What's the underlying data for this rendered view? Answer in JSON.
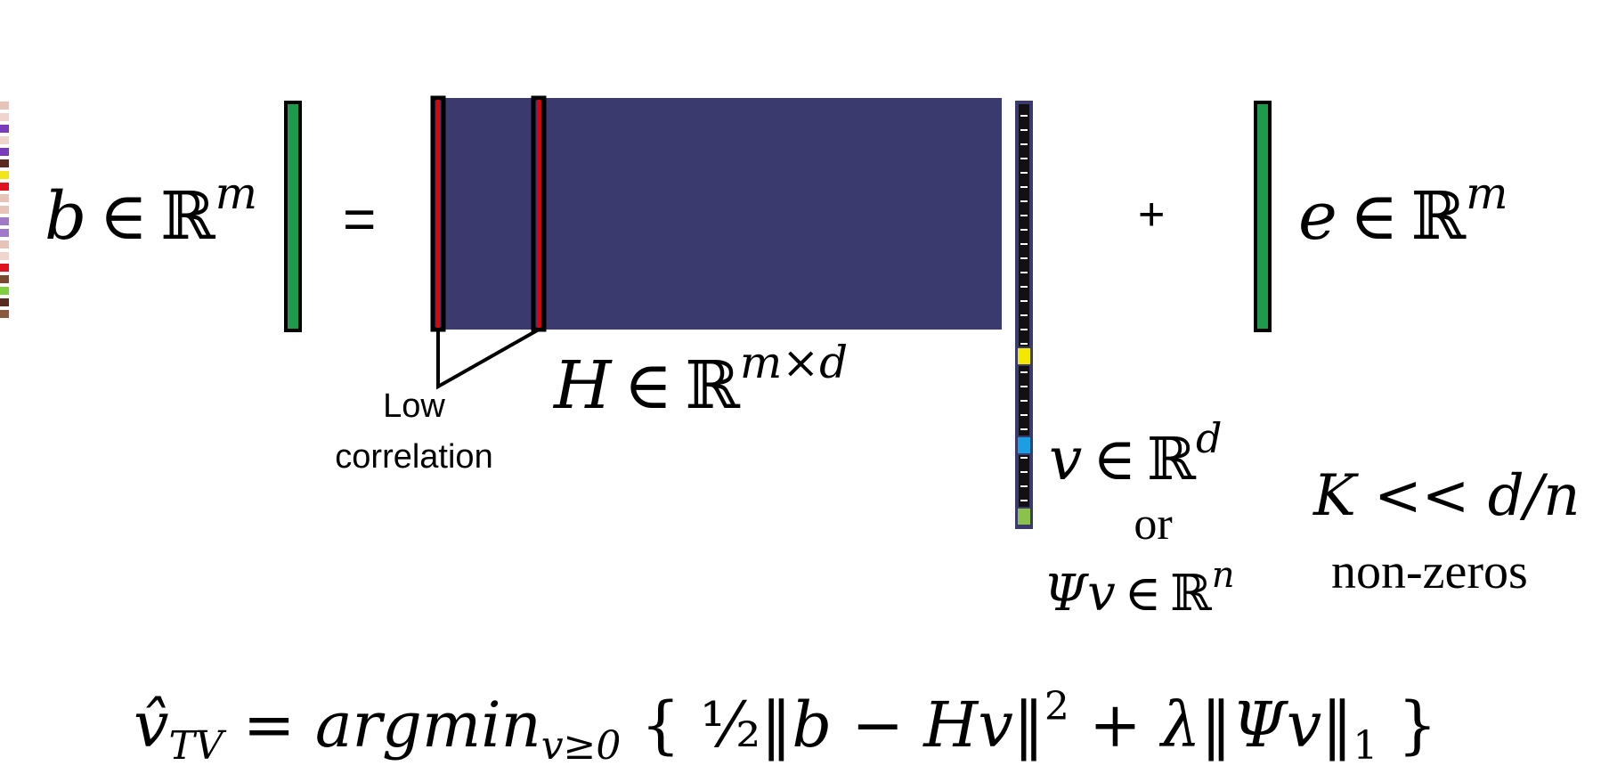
{
  "colors": {
    "matrix_bg": "#3b3a6e",
    "vector_green": "#1e9b4a",
    "highlight_red": "#e60000",
    "cell_palette": [
      "#e8c4b8",
      "#f0d5cc",
      "#8b5a3c",
      "#7a4a30",
      "#2e7fd6",
      "#7fcf40",
      "#e0141e",
      "#f2e61a",
      "#7a3cb8",
      "#a07ac8",
      "#5b2a1e",
      "#d2b4a8"
    ],
    "v_yellow": "#f5e800",
    "v_blue": "#1aa0e0",
    "v_green": "#8bc34a"
  },
  "equation": {
    "b_base": "b",
    "in_symbol": "∈",
    "reals": "ℝ",
    "b_exp": "m",
    "equals": "=",
    "plus": "+",
    "e_base": "e",
    "e_exp": "m",
    "H_base": "H",
    "H_exp": "m×d",
    "v_base": "v",
    "v_exp": "d",
    "or_text": "or",
    "psi_v": "Ψv",
    "psi_exp": "n",
    "K_condition": "K << d/n",
    "nonzeros": "non-zeros"
  },
  "annotation": {
    "low": "Low",
    "correlation": "correlation"
  },
  "formula": {
    "lhs": "v̂",
    "lhs_sub": "TV",
    "eq": " = ",
    "argmin": "argmin",
    "argmin_sub": "v≥0",
    "body_left": " { ",
    "half": "½",
    "term1": "‖b − Hv‖",
    "sq": "2",
    "plus_lambda": " + λ‖Ψv‖",
    "l1": "1",
    "body_right": " }"
  }
}
